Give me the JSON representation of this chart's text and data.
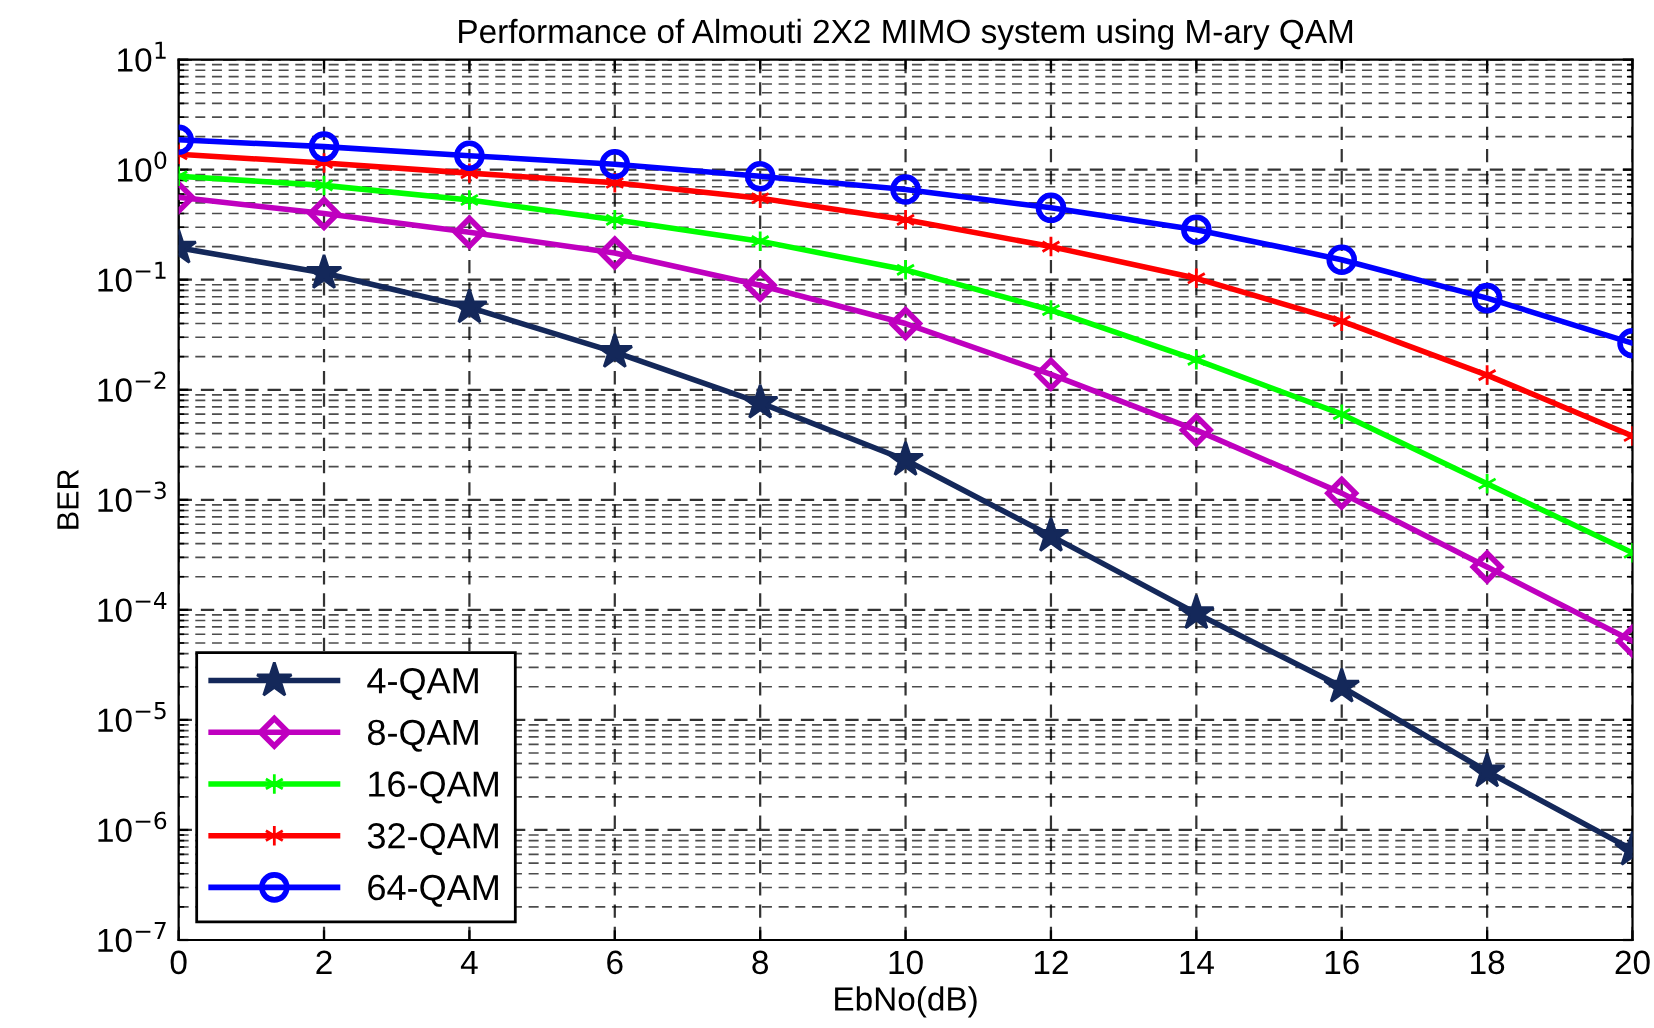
{
  "chart_data": {
    "type": "line",
    "title": "Performance of Almouti 2X2 MIMO system using M-ary QAM",
    "xlabel": "EbNo(dB)",
    "ylabel": "BER",
    "x": [
      0,
      2,
      4,
      6,
      8,
      10,
      12,
      14,
      16,
      18,
      20
    ],
    "series": [
      {
        "name": "4-QAM",
        "color": "#14285a",
        "marker": "star",
        "values": [
          0.195,
          0.115,
          0.056,
          0.022,
          0.0076,
          0.0023,
          0.00047,
          9.3e-05,
          2e-05,
          3.4e-06,
          6.6e-07
        ]
      },
      {
        "name": "8-QAM",
        "color": "#bf00bf",
        "marker": "diamond",
        "values": [
          0.56,
          0.4,
          0.27,
          0.175,
          0.089,
          0.04,
          0.0138,
          0.0043,
          0.00115,
          0.000245,
          5.2e-05
        ]
      },
      {
        "name": "16-QAM",
        "color": "#00ff00",
        "marker": "cross",
        "values": [
          0.87,
          0.72,
          0.53,
          0.35,
          0.224,
          0.123,
          0.053,
          0.0187,
          0.006,
          0.0014,
          0.00033
        ]
      },
      {
        "name": "32-QAM",
        "color": "#ff0000",
        "marker": "cross",
        "values": [
          1.38,
          1.15,
          0.93,
          0.76,
          0.55,
          0.35,
          0.2,
          0.103,
          0.042,
          0.0136,
          0.0038
        ]
      },
      {
        "name": "64-QAM",
        "color": "#0000ff",
        "marker": "circle",
        "values": [
          1.87,
          1.62,
          1.34,
          1.12,
          0.87,
          0.66,
          0.45,
          0.285,
          0.152,
          0.068,
          0.0265
        ]
      }
    ],
    "log": "y",
    "xlim": [
      0,
      20
    ],
    "ylim": [
      1e-07,
      10
    ],
    "xticks": [
      0,
      2,
      4,
      6,
      8,
      10,
      12,
      14,
      16,
      18,
      20
    ],
    "yticks": [
      {
        "value": 1e-07,
        "label": "10$^{−7}$"
      },
      {
        "value": 1e-06,
        "label": "10$^{−6}$"
      },
      {
        "value": 1e-05,
        "label": "10$^{−5}$"
      },
      {
        "value": 0.0001,
        "label": "10$^{−4}$"
      },
      {
        "value": 0.001,
        "label": "10$^{−3}$"
      },
      {
        "value": 0.01,
        "label": "10$^{−2}$"
      },
      {
        "value": 0.1,
        "label": "10$^{−1}$"
      },
      {
        "value": 1,
        "label": "10$^{0}$"
      },
      {
        "value": 10,
        "label": "10$^{1}$"
      }
    ],
    "grid": true,
    "legend": "bottom left",
    "line_style": "solid"
  }
}
